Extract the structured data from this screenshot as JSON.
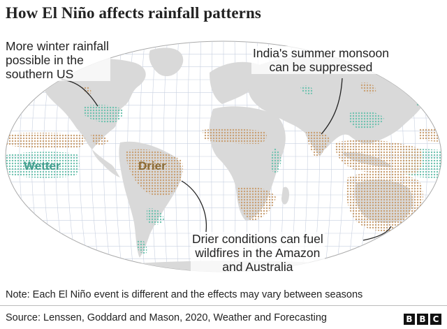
{
  "title": "How El Niño affects rainfall patterns",
  "annotations": {
    "us": [
      "More winter rainfall",
      "possible in the",
      "southern US"
    ],
    "india": [
      "India's summer monsoon",
      "can be suppressed"
    ],
    "amazon": [
      "Drier conditions can fuel",
      "wildfires in the Amazon",
      "and Australia"
    ]
  },
  "zones": {
    "wetter": {
      "label": "Wetter",
      "color": "#3e9c8c",
      "pattern_color": "#6ec2af"
    },
    "drier": {
      "label": "Drier",
      "color": "#8a6a35",
      "pattern_color": "#c9a073"
    }
  },
  "colors": {
    "land": "#d9d9d9",
    "ocean": "#ffffff",
    "graticule": "#c8d0e0"
  },
  "note": "Note: Each El Niño event is different and the effects may vary between seasons",
  "source": "Source: Lenssen, Goddard and Mason, 2020, Weather and Forecasting",
  "logo": [
    "B",
    "B",
    "C"
  ]
}
